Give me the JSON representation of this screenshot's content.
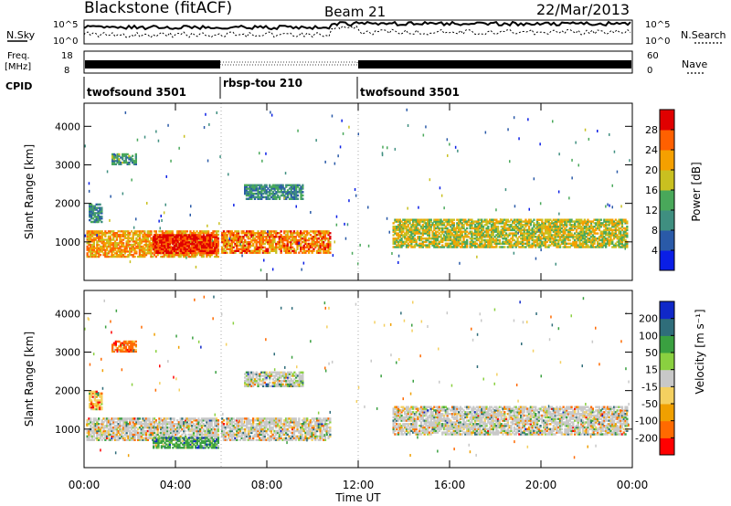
{
  "header": {
    "station": "Blackstone (fitACF)",
    "beam": "Beam 21",
    "date": "22/Mar/2013"
  },
  "noise_panel": {
    "left_label": "N.Sky",
    "left_ticks": [
      "10^5",
      "10^0"
    ],
    "right_ticks": [
      "10^5",
      "10^0"
    ],
    "right_label": "N.Search"
  },
  "freq_panel": {
    "left_label_line1": "Freq.",
    "left_label_line2": "[MHz]",
    "left_ticks": [
      "18",
      "8"
    ],
    "right_ticks": [
      "60",
      "0"
    ],
    "right_label": "Nave"
  },
  "cpid": {
    "label": "CPID",
    "segments": [
      {
        "name": "twofsound 3501",
        "start_h": 0,
        "end_h": 6
      },
      {
        "name": "rbsp-tou 210",
        "start_h": 6,
        "end_h": 12
      },
      {
        "name": "twofsound 3501",
        "start_h": 12,
        "end_h": 24
      }
    ]
  },
  "panels": {
    "power": {
      "ylabel": "Slant Range [km]",
      "cbar_label": "Power [dB]"
    },
    "velocity": {
      "ylabel": "Slant Range [km]",
      "cbar_label": "Velocity [m s⁻¹]"
    }
  },
  "xaxis": {
    "label": "Time UT"
  },
  "chart_data": [
    {
      "type": "heatmap",
      "title": "Power",
      "x_range_hours": [
        0,
        24
      ],
      "xticks": [
        "00:00",
        "04:00",
        "08:00",
        "12:00",
        "16:00",
        "20:00",
        "00:00"
      ],
      "ylim": [
        0,
        4600
      ],
      "yticks": [
        1000,
        2000,
        3000,
        4000
      ],
      "colorbar": {
        "ticks": [
          4,
          8,
          12,
          16,
          20,
          24,
          28
        ],
        "range": [
          0,
          32
        ],
        "colors": [
          "#0a1ee6",
          "#2a5aa8",
          "#3f8f80",
          "#49a85a",
          "#c9c020",
          "#f5a000",
          "#ff6000",
          "#e00000"
        ]
      },
      "regions": [
        {
          "t0": 0.1,
          "t1": 5.9,
          "r0": 600,
          "r1": 1300,
          "value": 22
        },
        {
          "t0": 3.0,
          "t1": 5.9,
          "r0": 700,
          "r1": 1200,
          "value": 30
        },
        {
          "t0": 6.0,
          "t1": 10.8,
          "r0": 700,
          "r1": 1300,
          "value": 24
        },
        {
          "t0": 13.5,
          "t1": 23.8,
          "r0": 850,
          "r1": 1600,
          "value": 18
        },
        {
          "t0": 0.2,
          "t1": 0.8,
          "r0": 1500,
          "r1": 2000,
          "value": 10
        },
        {
          "t0": 1.2,
          "t1": 2.3,
          "r0": 3000,
          "r1": 3300,
          "value": 12
        },
        {
          "t0": 7.0,
          "t1": 9.6,
          "r0": 2100,
          "r1": 2500,
          "value": 10
        }
      ]
    },
    {
      "type": "heatmap",
      "title": "Velocity",
      "x_range_hours": [
        0,
        24
      ],
      "xticks": [
        "00:00",
        "04:00",
        "08:00",
        "12:00",
        "16:00",
        "20:00",
        "00:00"
      ],
      "ylim": [
        0,
        4600
      ],
      "yticks": [
        1000,
        2000,
        3000,
        4000
      ],
      "colorbar": {
        "ticks": [
          -200,
          -100,
          -50,
          -15,
          15,
          50,
          100,
          200
        ],
        "range": [
          -250,
          250
        ],
        "colors": [
          "#ff0000",
          "#ff6a00",
          "#f0a000",
          "#f4d060",
          "#c8c8c8",
          "#8ad040",
          "#3aa040",
          "#2f6d7a",
          "#1028c8"
        ]
      },
      "regions": [
        {
          "t0": 0.1,
          "t1": 5.9,
          "r0": 700,
          "r1": 1300,
          "value": 0
        },
        {
          "t0": 3.0,
          "t1": 5.9,
          "r0": 500,
          "r1": 800,
          "value": 120
        },
        {
          "t0": 6.0,
          "t1": 10.8,
          "r0": 700,
          "r1": 1300,
          "value": 0
        },
        {
          "t0": 13.5,
          "t1": 23.8,
          "r0": 850,
          "r1": 1600,
          "value": 0
        },
        {
          "t0": 0.2,
          "t1": 0.8,
          "r0": 1500,
          "r1": 2000,
          "value": -60
        },
        {
          "t0": 1.2,
          "t1": 2.3,
          "r0": 3000,
          "r1": 3300,
          "value": -150
        },
        {
          "t0": 7.0,
          "t1": 9.6,
          "r0": 2100,
          "r1": 2500,
          "value": 20
        }
      ]
    }
  ]
}
